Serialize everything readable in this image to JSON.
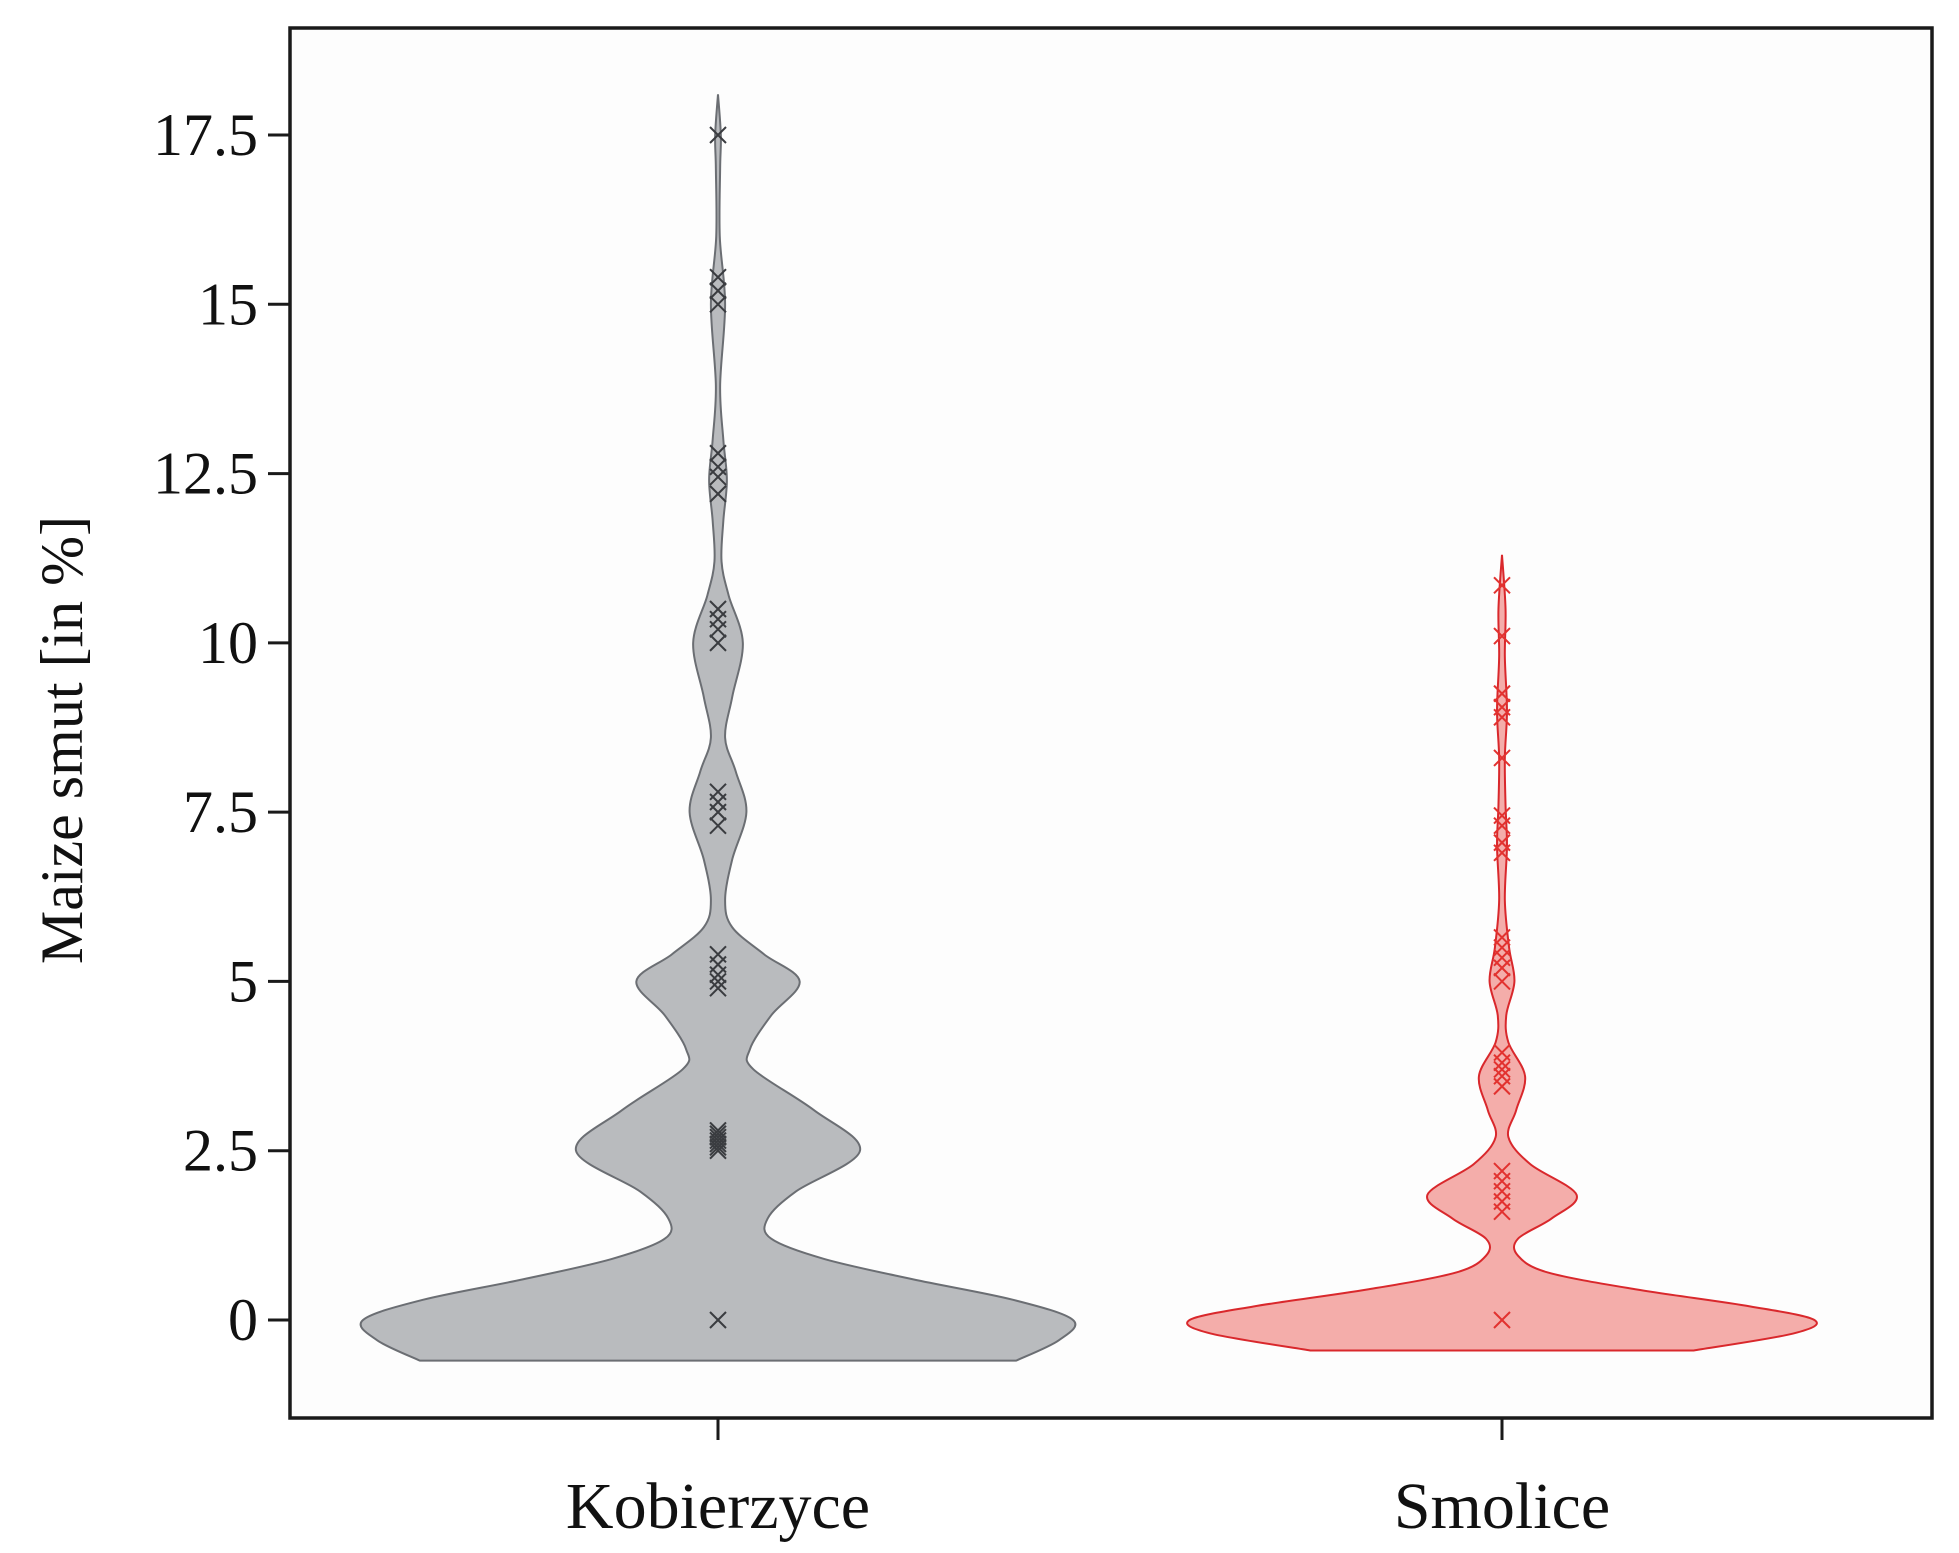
{
  "chart_data": {
    "type": "violin",
    "title": "",
    "xlabel": "",
    "ylabel": "Maize smut [in %]",
    "ylim": [
      -1.5,
      19.5
    ],
    "yticks": [
      0,
      2.5,
      5,
      7.5,
      10,
      12.5,
      15,
      17.5
    ],
    "ytick_labels": [
      "0",
      "2.5",
      "5",
      "7.5",
      "10",
      "12.5",
      "15",
      "17.5"
    ],
    "categories": [
      "Kobierzyce",
      "Smolice"
    ],
    "series": [
      {
        "name": "Kobierzyce",
        "color": "#6b6e73",
        "fill": "#b5b7bb",
        "marker_color": "#3a3c40",
        "range": [
          -0.6,
          18.1
        ],
        "density": [
          [
            -0.6,
            0.84
          ],
          [
            -0.3,
            0.96
          ],
          [
            0.0,
            1.0
          ],
          [
            0.3,
            0.83
          ],
          [
            0.6,
            0.55
          ],
          [
            0.9,
            0.3
          ],
          [
            1.2,
            0.15
          ],
          [
            1.5,
            0.14
          ],
          [
            1.9,
            0.22
          ],
          [
            2.5,
            0.4
          ],
          [
            3.1,
            0.27
          ],
          [
            3.7,
            0.1
          ],
          [
            4.0,
            0.09
          ],
          [
            4.5,
            0.15
          ],
          [
            5.0,
            0.23
          ],
          [
            5.4,
            0.13
          ],
          [
            5.8,
            0.04
          ],
          [
            6.2,
            0.02
          ],
          [
            6.8,
            0.04
          ],
          [
            7.5,
            0.08
          ],
          [
            8.1,
            0.05
          ],
          [
            8.6,
            0.02
          ],
          [
            9.2,
            0.04
          ],
          [
            10.0,
            0.07
          ],
          [
            10.7,
            0.03
          ],
          [
            11.2,
            0.01
          ],
          [
            11.8,
            0.015
          ],
          [
            12.4,
            0.025
          ],
          [
            13.0,
            0.015
          ],
          [
            13.8,
            0.006
          ],
          [
            15.0,
            0.02
          ],
          [
            16.0,
            0.005
          ],
          [
            17.0,
            0.006
          ],
          [
            17.5,
            0.008
          ],
          [
            18.1,
            0.0
          ]
        ],
        "points": [
          0,
          2.5,
          2.55,
          2.6,
          2.65,
          2.7,
          2.75,
          2.8,
          4.9,
          5.0,
          5.1,
          5.25,
          5.4,
          7.3,
          7.5,
          7.65,
          7.8,
          10.0,
          10.2,
          10.35,
          10.5,
          12.2,
          12.45,
          12.6,
          12.8,
          15.0,
          15.2,
          15.4,
          17.5
        ]
      },
      {
        "name": "Smolice",
        "color": "#d9282c",
        "fill": "#f3a9a5",
        "marker_color": "#e2322f",
        "range": [
          -0.45,
          11.3
        ],
        "density": [
          [
            -0.45,
            0.54
          ],
          [
            -0.2,
            0.82
          ],
          [
            0.0,
            0.88
          ],
          [
            0.2,
            0.7
          ],
          [
            0.45,
            0.38
          ],
          [
            0.7,
            0.13
          ],
          [
            0.95,
            0.045
          ],
          [
            1.2,
            0.045
          ],
          [
            1.5,
            0.14
          ],
          [
            1.85,
            0.21
          ],
          [
            2.3,
            0.08
          ],
          [
            2.7,
            0.018
          ],
          [
            3.1,
            0.04
          ],
          [
            3.6,
            0.065
          ],
          [
            4.1,
            0.018
          ],
          [
            4.5,
            0.012
          ],
          [
            5.0,
            0.035
          ],
          [
            5.5,
            0.02
          ],
          [
            6.2,
            0.008
          ],
          [
            7.0,
            0.014
          ],
          [
            7.6,
            0.01
          ],
          [
            8.3,
            0.008
          ],
          [
            9.0,
            0.014
          ],
          [
            9.8,
            0.008
          ],
          [
            10.5,
            0.01
          ],
          [
            11.3,
            0.0
          ]
        ],
        "points": [
          0,
          1.6,
          1.75,
          1.9,
          2.05,
          2.2,
          3.45,
          3.6,
          3.7,
          3.8,
          3.95,
          5.0,
          5.2,
          5.35,
          5.5,
          5.65,
          6.9,
          7.05,
          7.3,
          7.45,
          8.3,
          8.9,
          9.05,
          9.25,
          10.1,
          10.85
        ]
      }
    ]
  }
}
